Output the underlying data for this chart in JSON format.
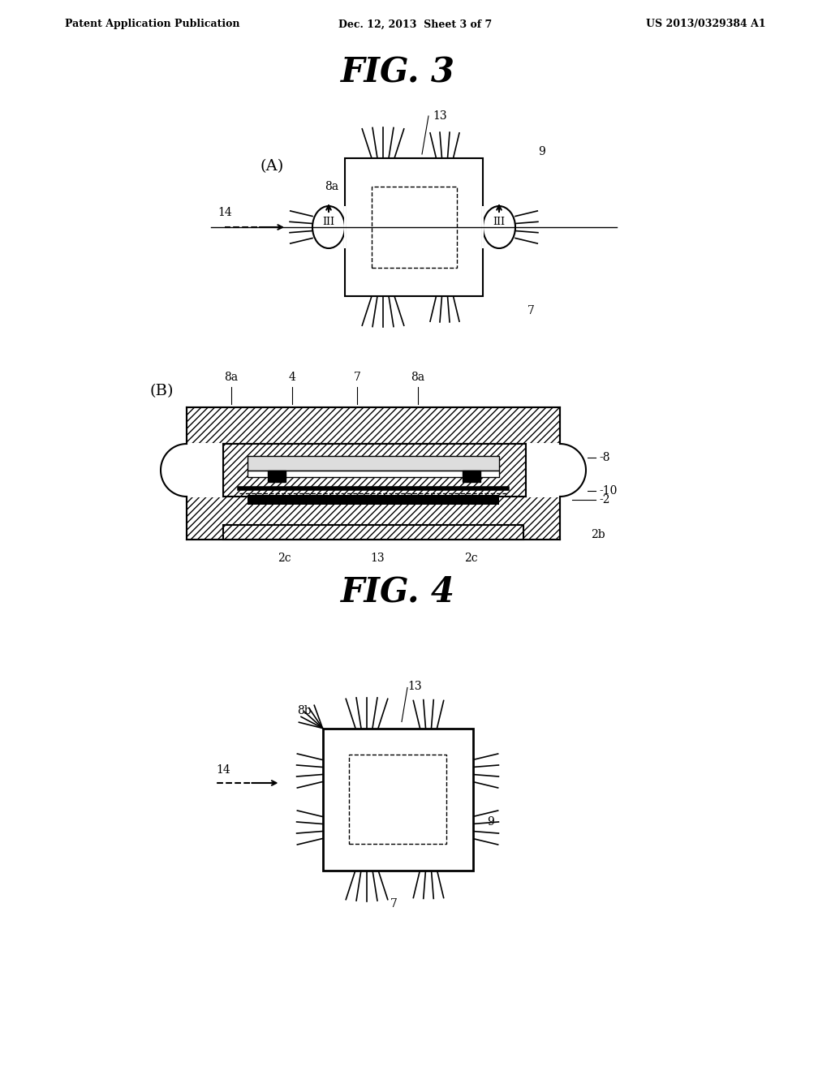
{
  "bg_color": "#ffffff",
  "header_left": "Patent Application Publication",
  "header_center": "Dec. 12, 2013  Sheet 3 of 7",
  "header_right": "US 2013/0329384 A1",
  "fig3_title": "FIG. 3",
  "fig4_title": "FIG. 4",
  "label_A": "(A)",
  "label_B": "(B)",
  "labels": {
    "13": "13",
    "9": "9",
    "8a": "8a",
    "14": "14",
    "III": "III",
    "7": "7",
    "4": "4",
    "8": "8",
    "10": "10",
    "2": "2",
    "2b": "2b",
    "2c": "2c",
    "8b": "8b"
  }
}
